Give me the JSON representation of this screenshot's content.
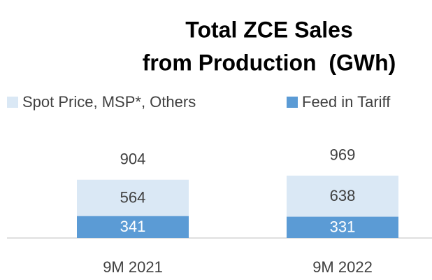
{
  "chart_data": {
    "type": "stacked_bar",
    "title": [
      "Total ZCE Sales",
      "from Production  (GWh)"
    ],
    "categories": [
      "9M 2021",
      "9M 2022"
    ],
    "series": [
      {
        "name": "Feed in Tariff",
        "color": "#5b9bd5",
        "values": [
          341,
          331
        ]
      },
      {
        "name": "Spot Price, MSP*, Others",
        "color": "#dae8f5",
        "values": [
          564,
          638
        ]
      }
    ],
    "totals": [
      904,
      969
    ],
    "legend": "top"
  }
}
